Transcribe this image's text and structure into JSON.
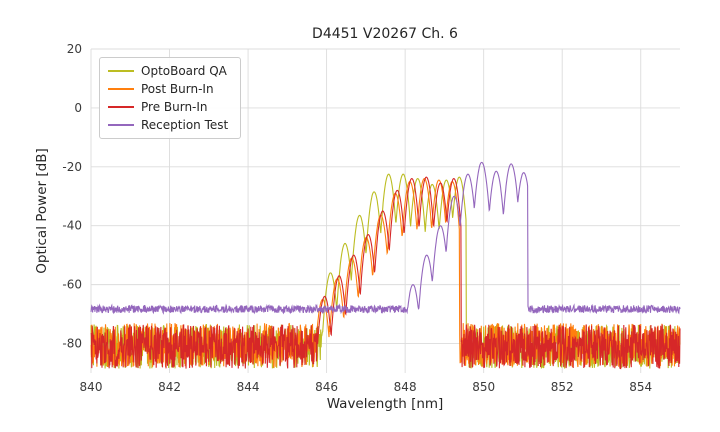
{
  "chart_data": {
    "type": "line",
    "title": "D4451 V20267 Ch. 6",
    "xlabel": "Wavelength [nm]",
    "ylabel": "Optical Power [dB]",
    "xlim": [
      840,
      855
    ],
    "ylim": [
      -90,
      20
    ],
    "xticks": [
      840,
      842,
      844,
      846,
      848,
      850,
      852,
      854
    ],
    "yticks": [
      20,
      0,
      -20,
      -40,
      -60,
      -80
    ],
    "grid": true,
    "legend_position": "upper left",
    "samples": 1500,
    "series": [
      {
        "id": "optoboard-qa",
        "name": "OptoBoard QA",
        "color": "#bcbd22",
        "noise_floor_db": -81,
        "noise_peak_to_peak_db": 15,
        "mode_k_db_per_nm2": 500,
        "cutoff_nm": [
          840,
          849.55
        ],
        "peaks": [
          [
            846.1,
            -56
          ],
          [
            846.47,
            -46
          ],
          [
            846.84,
            -36.5
          ],
          [
            847.21,
            -28.5
          ],
          [
            847.58,
            -22.5
          ],
          [
            847.95,
            -22.5
          ],
          [
            848.32,
            -24
          ],
          [
            848.69,
            -26
          ],
          [
            849.05,
            -24.5
          ],
          [
            849.38,
            -23.5
          ]
        ]
      },
      {
        "id": "post-burn-in",
        "name": "Post Burn-In",
        "color": "#ff7f0e",
        "noise_floor_db": -80.5,
        "noise_peak_to_peak_db": 15,
        "mode_k_db_per_nm2": 500,
        "cutoff_nm": [
          840,
          849.38
        ],
        "peaks": [
          [
            845.9,
            -65
          ],
          [
            846.27,
            -58
          ],
          [
            846.64,
            -51
          ],
          [
            847.01,
            -44
          ],
          [
            847.38,
            -36.5
          ],
          [
            847.75,
            -29
          ],
          [
            848.12,
            -25
          ],
          [
            848.49,
            -24
          ],
          [
            848.86,
            -24.5
          ],
          [
            849.2,
            -25
          ]
        ]
      },
      {
        "id": "pre-burn-in",
        "name": "Pre Burn-In",
        "color": "#d62728",
        "noise_floor_db": -81,
        "noise_peak_to_peak_db": 15,
        "mode_k_db_per_nm2": 500,
        "cutoff_nm": [
          840,
          849.42
        ],
        "peaks": [
          [
            845.95,
            -64
          ],
          [
            846.32,
            -57
          ],
          [
            846.69,
            -50
          ],
          [
            847.06,
            -43
          ],
          [
            847.43,
            -35
          ],
          [
            847.8,
            -28
          ],
          [
            848.17,
            -24
          ],
          [
            848.54,
            -23.5
          ],
          [
            848.9,
            -25.5
          ],
          [
            849.24,
            -24
          ]
        ]
      },
      {
        "id": "reception-test",
        "name": "Reception Test",
        "color": "#9467bd",
        "noise_floor_db": -68.3,
        "noise_peak_to_peak_db": 2.6,
        "mode_k_db_per_nm2": 450,
        "cutoff_nm": [
          840,
          851.12
        ],
        "peaks": [
          [
            848.2,
            -60
          ],
          [
            848.55,
            -50
          ],
          [
            848.9,
            -40
          ],
          [
            849.25,
            -30
          ],
          [
            849.6,
            -22.5
          ],
          [
            849.95,
            -18.5
          ],
          [
            850.32,
            -21.5
          ],
          [
            850.7,
            -19
          ],
          [
            851.02,
            -22
          ]
        ]
      }
    ]
  }
}
